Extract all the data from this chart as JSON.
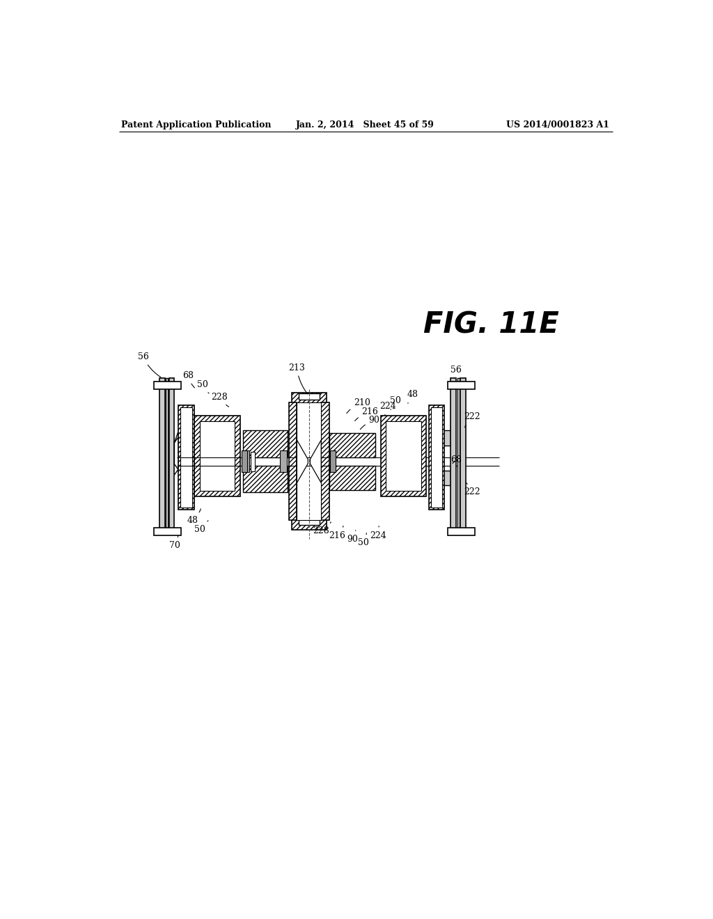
{
  "background_color": "#ffffff",
  "line_color": "#000000",
  "header_left": "Patent Application Publication",
  "header_center": "Jan. 2, 2014   Sheet 45 of 59",
  "header_right": "US 2014/0001823 A1",
  "fig_label": "FIG. 11E"
}
